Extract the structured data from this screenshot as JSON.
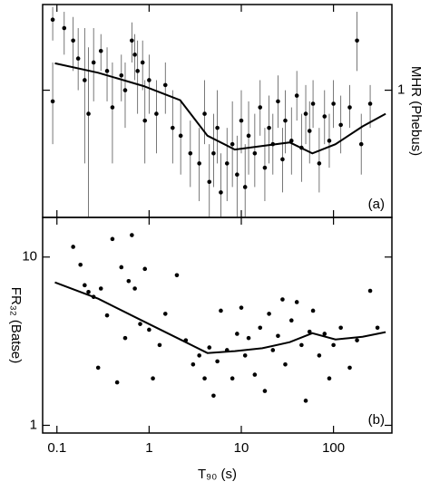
{
  "chart_data": [
    {
      "type": "scatter",
      "log_x": true,
      "log_y": true,
      "y_label": "MHR (Phebus)",
      "panel_label": "(a)",
      "y_axis_side": "right",
      "color": "#000000",
      "xlim": [
        0.07,
        430
      ],
      "xticks": [
        0.1,
        1,
        10,
        100
      ],
      "ylim": [
        0.3,
        2.25
      ],
      "yticks": [
        1
      ],
      "x": [
        0.09,
        0.09,
        0.12,
        0.15,
        0.17,
        0.2,
        0.22,
        0.25,
        0.3,
        0.35,
        0.4,
        0.5,
        0.55,
        0.65,
        0.7,
        0.75,
        0.85,
        0.9,
        1.0,
        1.2,
        1.5,
        1.8,
        2.2,
        2.8,
        3.5,
        4.0,
        4.5,
        5.0,
        5.5,
        6.0,
        7,
        8,
        9,
        10,
        11,
        12,
        14,
        16,
        18,
        20,
        22,
        25,
        28,
        30,
        35,
        40,
        45,
        50,
        55,
        60,
        70,
        80,
        90,
        100,
        120,
        150,
        180,
        200,
        250
      ],
      "values": [
        1.95,
        0.9,
        1.8,
        1.6,
        1.35,
        1.1,
        0.8,
        1.3,
        1.45,
        1.2,
        0.85,
        1.15,
        1.0,
        1.6,
        1.4,
        1.2,
        1.3,
        0.75,
        1.1,
        0.8,
        1.05,
        0.7,
        0.65,
        0.55,
        0.5,
        0.8,
        0.42,
        0.55,
        0.7,
        0.38,
        0.5,
        0.6,
        0.45,
        0.75,
        0.4,
        0.65,
        0.55,
        0.85,
        0.48,
        0.7,
        0.6,
        0.9,
        0.52,
        0.75,
        0.62,
        0.95,
        0.58,
        0.8,
        0.68,
        0.88,
        0.5,
        0.78,
        0.62,
        0.88,
        0.72,
        0.85,
        1.6,
        0.6,
        0.88
      ],
      "y_low": [
        1.6,
        0.6,
        1.4,
        1.2,
        1.0,
        0.5,
        0.3,
        0.9,
        1.2,
        0.9,
        0.5,
        0.9,
        0.7,
        1.3,
        1.1,
        0.8,
        1.0,
        0.5,
        0.8,
        0.55,
        0.8,
        0.5,
        0.45,
        0.4,
        0.35,
        0.6,
        0.3,
        0.4,
        0.5,
        0.3,
        0.35,
        0.4,
        0.3,
        0.55,
        0.3,
        0.45,
        0.4,
        0.65,
        0.35,
        0.5,
        0.45,
        0.7,
        0.38,
        0.55,
        0.45,
        0.75,
        0.42,
        0.6,
        0.5,
        0.7,
        0.38,
        0.6,
        0.48,
        0.7,
        0.55,
        0.7,
        1.2,
        0.45,
        0.7
      ],
      "y_high": [
        2.2,
        1.3,
        2.1,
        2.0,
        1.8,
        1.8,
        1.5,
        1.8,
        1.7,
        1.5,
        1.3,
        1.4,
        1.3,
        1.9,
        1.7,
        1.6,
        1.6,
        1.1,
        1.4,
        1.1,
        1.3,
        1.0,
        0.9,
        0.75,
        0.7,
        1.1,
        0.6,
        0.8,
        1.0,
        0.55,
        0.7,
        0.9,
        0.65,
        1.0,
        0.6,
        0.9,
        0.8,
        1.1,
        0.7,
        0.95,
        0.8,
        1.15,
        0.7,
        1.0,
        0.85,
        1.2,
        0.8,
        1.05,
        0.9,
        1.1,
        0.7,
        1.0,
        0.8,
        1.1,
        0.95,
        1.05,
        2.1,
        0.8,
        1.05
      ],
      "curve": {
        "x": [
          0.095,
          0.28,
          0.87,
          2.17,
          4.3,
          8.5,
          16.9,
          33.5,
          59,
          105,
          207,
          368
        ],
        "values": [
          1.29,
          1.18,
          1.04,
          0.91,
          0.65,
          0.57,
          0.59,
          0.61,
          0.55,
          0.6,
          0.71,
          0.8
        ]
      }
    },
    {
      "type": "scatter",
      "log_x": true,
      "log_y": true,
      "y_label": "FR₃₂ (Batse)",
      "x_label": "T₉₀ (s)",
      "panel_label": "(b)",
      "y_axis_side": "left",
      "color": "#000000",
      "xlim": [
        0.07,
        430
      ],
      "xticks": [
        0.1,
        1,
        10,
        100
      ],
      "ylim": [
        0.9,
        17.2
      ],
      "yticks": [
        1,
        10
      ],
      "x": [
        0.15,
        0.18,
        0.2,
        0.22,
        0.25,
        0.28,
        0.3,
        0.35,
        0.4,
        0.45,
        0.5,
        0.55,
        0.6,
        0.65,
        0.7,
        0.8,
        0.9,
        1.0,
        1.1,
        1.3,
        1.5,
        2.0,
        2.5,
        3.0,
        3.5,
        4.0,
        4.5,
        5.0,
        5.5,
        6,
        7,
        8,
        9,
        10,
        11,
        12,
        14,
        16,
        18,
        20,
        22,
        25,
        28,
        30,
        35,
        40,
        45,
        50,
        55,
        60,
        70,
        80,
        90,
        100,
        120,
        150,
        180,
        250,
        300
      ],
      "values": [
        11.5,
        9,
        6.8,
        6.2,
        5.8,
        2.2,
        6.5,
        4.5,
        12.8,
        1.8,
        8.7,
        3.3,
        7.2,
        13.5,
        6.5,
        4.0,
        8.5,
        3.7,
        1.9,
        3.0,
        4.6,
        7.8,
        3.2,
        2.3,
        2.6,
        1.9,
        2.9,
        1.5,
        2.4,
        4.8,
        2.8,
        1.9,
        3.5,
        5.0,
        2.6,
        3.3,
        2.0,
        3.8,
        1.6,
        4.6,
        2.8,
        3.4,
        5.6,
        2.3,
        4.2,
        5.4,
        3.0,
        1.4,
        3.6,
        4.8,
        2.6,
        3.5,
        1.9,
        3.0,
        3.8,
        2.2,
        3.2,
        6.3,
        3.8
      ],
      "curve": {
        "x": [
          0.095,
          0.28,
          0.87,
          2.17,
          4.3,
          8.5,
          16.9,
          33.5,
          59,
          105,
          207,
          368
        ],
        "values": [
          7.07,
          5.66,
          4.15,
          3.24,
          2.69,
          2.76,
          2.87,
          3.12,
          3.53,
          3.24,
          3.36,
          3.58
        ]
      }
    }
  ]
}
